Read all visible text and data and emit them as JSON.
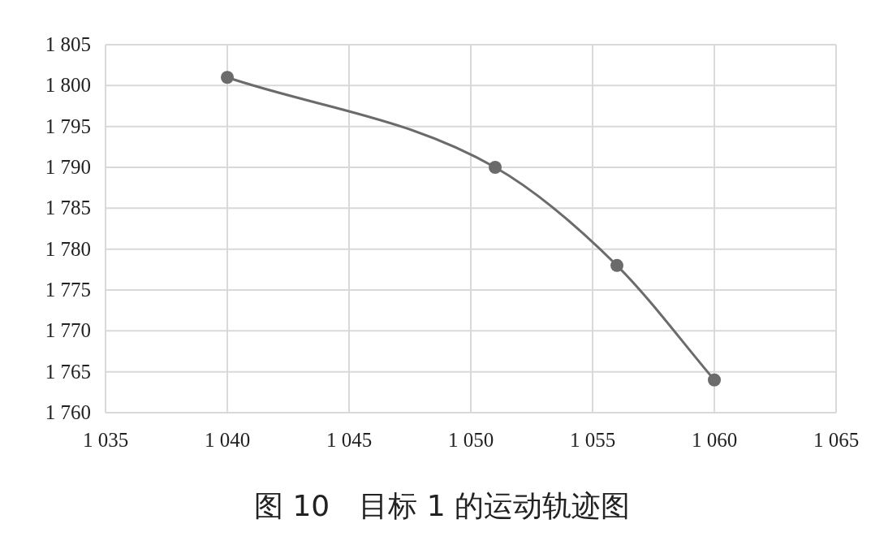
{
  "chart_data": {
    "type": "line",
    "x": [
      1040,
      1051,
      1056,
      1060
    ],
    "series": [
      {
        "color": "#6b6b6b",
        "values": [
          1801,
          1790,
          1778,
          1764
        ]
      }
    ],
    "xlim": [
      1035,
      1065
    ],
    "xticks": [
      {
        "value": 1035,
        "label": "1 035"
      },
      {
        "value": 1040,
        "label": "1 040"
      },
      {
        "value": 1045,
        "label": "1 045"
      },
      {
        "value": 1050,
        "label": "1 050"
      },
      {
        "value": 1055,
        "label": "1 055"
      },
      {
        "value": 1060,
        "label": "1 060"
      },
      {
        "value": 1065,
        "label": "1 065"
      }
    ],
    "ylim": [
      1760,
      1805
    ],
    "yticks": [
      {
        "value": 1760,
        "label": "1 760"
      },
      {
        "value": 1765,
        "label": "1 765"
      },
      {
        "value": 1770,
        "label": "1 770"
      },
      {
        "value": 1775,
        "label": "1 775"
      },
      {
        "value": 1780,
        "label": "1 780"
      },
      {
        "value": 1785,
        "label": "1 785"
      },
      {
        "value": 1790,
        "label": "1 790"
      },
      {
        "value": 1795,
        "label": "1 795"
      },
      {
        "value": 1800,
        "label": "1 800"
      },
      {
        "value": 1805,
        "label": "1 805"
      }
    ],
    "grid": true,
    "marker": "circle",
    "line_style": "solid",
    "annotations": [
      "图 10　目标 1 的运动轨迹图"
    ]
  }
}
